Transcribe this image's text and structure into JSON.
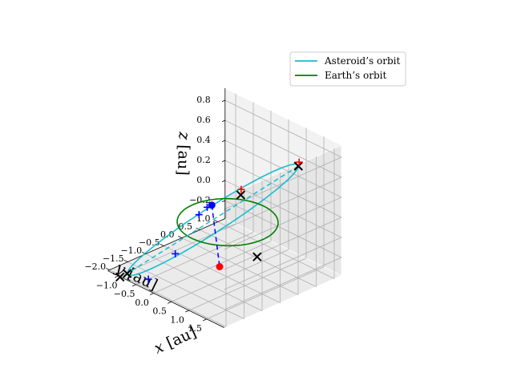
{
  "chart_data": {
    "type": "line3d",
    "title": "",
    "xlabel": "$x$ [au]",
    "ylabel": "$y$ [au]",
    "zlabel": "$z$ [au]",
    "xlim": [
      -1.3,
      2.0
    ],
    "ylim": [
      -2.05,
      1.2
    ],
    "zlim": [
      -0.38,
      0.92
    ],
    "xticks": [
      -1.0,
      -0.5,
      0.0,
      0.5,
      1.0,
      1.5
    ],
    "yticks": [
      1.0,
      0.5,
      0.0,
      -0.5,
      -1.0,
      -1.5,
      -2.0
    ],
    "zticks": [
      -0.2,
      0.0,
      0.2,
      0.4,
      0.6,
      0.8
    ],
    "xtick_labels": [
      "−1.0",
      "−0.5",
      "0.0",
      "0.5",
      "1.0",
      "1.5"
    ],
    "ytick_labels": [
      "1.0",
      "0.5",
      "0.0",
      "−0.5",
      "−1.0",
      "−1.5",
      "−2.0"
    ],
    "ztick_labels": [
      "−0.2",
      "0.0",
      "0.2",
      "0.4",
      "0.6",
      "0.8"
    ],
    "grid": true,
    "legend_position": "top-right",
    "series": [
      {
        "name": "Asteroid’s orbit",
        "color": "#17becf",
        "style": "solid",
        "description": "ellipse",
        "center": [
          0.55,
          -0.95,
          0.27
        ],
        "semi_axis_a": [
          1.2,
          1.2,
          0.55
        ],
        "semi_axis_b": [
          -0.6,
          0.6,
          -0.05
        ]
      },
      {
        "name": "Earth’s orbit",
        "color": "#008000",
        "style": "solid",
        "description": "unit circle in z=0",
        "center": [
          0,
          0,
          0
        ],
        "radius": 1.0
      }
    ],
    "lines": [
      {
        "color": "#17becf",
        "style": "dashed",
        "from": [
          1.75,
          0.25,
          0.82
        ],
        "to": [
          -0.65,
          -2.15,
          -0.28
        ]
      },
      {
        "color": "#0000ff",
        "style": "dashed",
        "from": [
          -0.06,
          -0.38,
          0.22
        ],
        "to": [
          1.0,
          -1.2,
          -0.08
        ]
      }
    ],
    "markers": [
      {
        "kind": "dot",
        "color": "#0000ff",
        "point": [
          -0.06,
          -0.38,
          0.22
        ]
      },
      {
        "kind": "dot",
        "color": "#ff0000",
        "point": [
          1.0,
          -1.2,
          -0.08
        ]
      },
      {
        "kind": "cross",
        "color": "#000000",
        "point": [
          -0.65,
          1.0,
          0.0
        ]
      },
      {
        "kind": "cross",
        "color": "#000000",
        "point": [
          -0.65,
          -2.15,
          -0.28
        ]
      },
      {
        "kind": "cross",
        "color": "#000000",
        "point": [
          -0.7,
          -2.3,
          -0.3
        ]
      },
      {
        "kind": "cross",
        "color": "#000000",
        "point": [
          1.45,
          -0.6,
          0.0
        ]
      },
      {
        "kind": "cross",
        "color": "#000000",
        "point": [
          1.75,
          0.25,
          0.82
        ]
      },
      {
        "kind": "plus",
        "color": "#ff0000",
        "point": [
          -0.66,
          1.02,
          0.05
        ]
      },
      {
        "kind": "plus",
        "color": "#ff0000",
        "point": [
          1.76,
          0.26,
          0.86
        ]
      },
      {
        "kind": "plus",
        "color": "#0000ff",
        "point": [
          -0.12,
          -0.45,
          0.2
        ]
      },
      {
        "kind": "plus",
        "color": "#0000ff",
        "point": [
          -0.25,
          -0.55,
          0.12
        ]
      },
      {
        "kind": "plus",
        "color": "#0000ff",
        "point": [
          0.1,
          -1.55,
          -0.05
        ]
      },
      {
        "kind": "plus",
        "color": "#0000ff",
        "point": [
          -0.1,
          -2.1,
          -0.25
        ]
      }
    ]
  }
}
